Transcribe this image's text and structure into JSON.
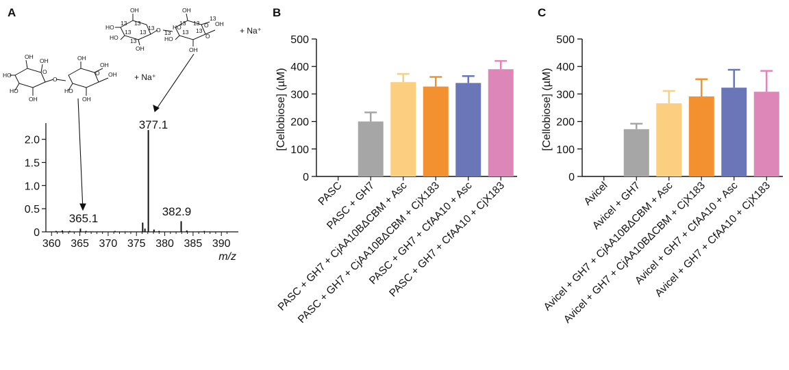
{
  "chart_data": [
    {
      "panel": "A",
      "type": "spectrum",
      "xlabel": "m/z",
      "xlim": [
        359,
        393
      ],
      "xticks": [
        360,
        365,
        370,
        375,
        380,
        385,
        390
      ],
      "ylim": [
        0,
        2.35
      ],
      "yticks": [
        "0",
        "0.5",
        "1.0",
        "1.5",
        "2.0"
      ],
      "ytick_values": [
        0,
        0.5,
        1.0,
        1.5,
        2.0
      ],
      "peaks": [
        {
          "x": 360.8,
          "y": 0.02
        },
        {
          "x": 361.9,
          "y": 0.03
        },
        {
          "x": 363.2,
          "y": 0.02
        },
        {
          "x": 365.1,
          "y": 0.07
        },
        {
          "x": 366.1,
          "y": 0.02
        },
        {
          "x": 371.2,
          "y": 0.02
        },
        {
          "x": 376.1,
          "y": 0.2
        },
        {
          "x": 376.5,
          "y": 0.07
        },
        {
          "x": 377.1,
          "y": 2.2
        },
        {
          "x": 378.1,
          "y": 0.05
        },
        {
          "x": 379.0,
          "y": 0.02
        },
        {
          "x": 382.9,
          "y": 0.23
        },
        {
          "x": 383.9,
          "y": 0.03
        },
        {
          "x": 387.0,
          "y": 0.02
        }
      ],
      "peak_labels": [
        {
          "x": 377.1,
          "text": "377.1"
        },
        {
          "x": 365.1,
          "text": "365.1"
        },
        {
          "x": 382.9,
          "text": "382.9"
        }
      ],
      "molecules": [
        {
          "ion": "+ Na⁺",
          "labels": [
            "OH",
            "OH",
            "OH",
            "HO",
            "HO",
            "HO",
            "O",
            "O",
            "O",
            "OH",
            "OH",
            "OH",
            "OH"
          ]
        },
        {
          "ion": "+ Na⁺",
          "labels": [
            "OH",
            "13",
            "13",
            "13",
            "HO",
            "13",
            "13",
            "HO",
            "13",
            "O",
            "13",
            "HO",
            "13",
            "13",
            "O",
            "13",
            "13",
            "OH",
            "O",
            "OH",
            "13",
            "OH",
            "OH",
            "HO"
          ]
        }
      ]
    },
    {
      "panel": "B",
      "type": "bar",
      "ylabel": "[Cellobiose] (µM)",
      "ylim": [
        0,
        500
      ],
      "yticks": [
        0,
        100,
        200,
        300,
        400,
        500
      ],
      "categories": [
        "PASC",
        "PASC + GH7",
        "PASC + GH7 + CjAA10BΔCBM + Asc",
        "PASC + GH7 + CjAA10BΔCBM + CjX183",
        "PASC + GH7 + CfAA10 + Asc",
        "PASC + GH7 + CfAA10 + CjX183"
      ],
      "values": [
        0,
        200,
        343,
        327,
        340,
        390
      ],
      "errors": [
        0,
        33,
        30,
        35,
        25,
        30
      ],
      "colors": [
        "#a6a6a6",
        "#a6a6a6",
        "#fccf80",
        "#f39130",
        "#6b76b8",
        "#dd86b8"
      ]
    },
    {
      "panel": "C",
      "type": "bar",
      "ylabel": "[Cellobiose] (µM)",
      "ylim": [
        0,
        500
      ],
      "yticks": [
        0,
        100,
        200,
        300,
        400,
        500
      ],
      "categories": [
        "Avicel",
        "Avicel + GH7",
        "Avicel + GH7 + CjAA10BΔCBM + Asc",
        "Avicel + GH7 + CjAA10BΔCBM + CjX183",
        "Avicel + GH7 + CfAA10 + Asc",
        "Avicel + GH7 + CfAA10 + CjX183"
      ],
      "values": [
        0,
        172,
        266,
        291,
        323,
        308
      ],
      "errors": [
        0,
        20,
        45,
        63,
        65,
        76
      ],
      "colors": [
        "#a6a6a6",
        "#a6a6a6",
        "#fccf80",
        "#f39130",
        "#6b76b8",
        "#dd86b8"
      ]
    }
  ]
}
